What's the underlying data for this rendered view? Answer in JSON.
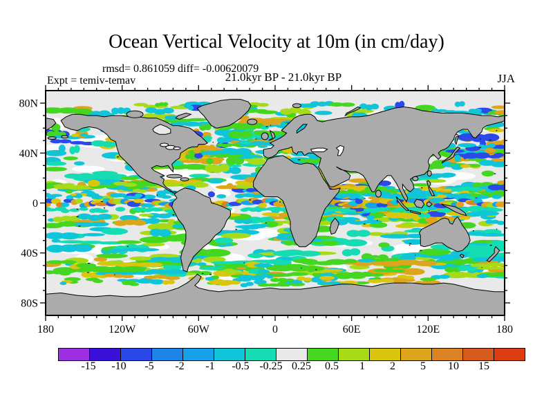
{
  "figure": {
    "background": "#FFFFFF"
  },
  "chart_data": {
    "type": "heatmap",
    "title": "Ocean Vertical Velocity at 10m (in cm/day)",
    "stats_line": "rmsd= 0.861059 diff= -0.00620079",
    "comparison_line": "21.0kyr BP - 21.0kyr BP",
    "experiment_label": "Expt = temiv-temav",
    "season_label": "JJA",
    "units": "cm/day",
    "x_axis": {
      "range": [
        -180,
        180
      ],
      "label_values": [
        -180,
        -120,
        -60,
        0,
        60,
        120,
        180
      ],
      "labels": [
        "180",
        "120W",
        "60W",
        "0",
        "60E",
        "120E",
        "180"
      ],
      "minor_tick_step_deg": 10
    },
    "y_axis": {
      "range": [
        -90,
        90
      ],
      "label_values": [
        80,
        40,
        0,
        -40,
        -80
      ],
      "labels": [
        "80N",
        "40N",
        "0",
        "40S",
        "80S"
      ],
      "minor_tick_step_deg": 10
    },
    "colorbar": {
      "boundary_labels": [
        "-15",
        "-10",
        "-5",
        "-2",
        "-1",
        "-0.5",
        "-0.25",
        "0.25",
        "0.5",
        "1",
        "2",
        "5",
        "10",
        "15"
      ],
      "cell_colors": [
        "#9C2FE0",
        "#3A11D8",
        "#2B49E8",
        "#1E84E8",
        "#18A0E8",
        "#11C5D8",
        "#16DCB3",
        "#E9E9E9",
        "#44D621",
        "#A8DB17",
        "#D8C60F",
        "#DDA51B",
        "#DB8324",
        "#D45A20",
        "#DC3D10"
      ]
    },
    "map": {
      "projection": "equirectangular",
      "land_color": "#ABABAB",
      "coast_color": "#000000",
      "ocean_band_color": "#E9E9E9",
      "frame_color": "#000000"
    },
    "pattern": {
      "seed": 77,
      "palette": {
        "blue": "#2B49E8",
        "skyblue": "#18A0E8",
        "cyan": "#11C5D8",
        "turq": "#16DCB3",
        "green": "#44D621",
        "yellowGreen": "#A8DB17",
        "yellow": "#D8C60F",
        "orange": "#DDA51B",
        "deepOrange": "#DB8324"
      },
      "white_patches": {
        "count": 75,
        "lat": [
          -60,
          72
        ],
        "rx": [
          12,
          45
        ],
        "ry": [
          4,
          11
        ]
      },
      "bands": [
        {
          "lat": [
            62,
            79
          ],
          "count": 90,
          "weights": {
            "cyan": 4,
            "green": 3,
            "yellowGreen": 2,
            "orange": 1,
            "blue": 1
          },
          "rx": [
            4,
            16
          ],
          "ry": [
            2,
            5
          ]
        },
        {
          "lat": [
            42,
            62
          ],
          "count": 100,
          "weights": {
            "cyan": 4,
            "green": 3,
            "orange": 2,
            "blue": 2,
            "yellow": 1,
            "turq": 2
          },
          "rx": [
            4,
            14
          ],
          "ry": [
            2,
            6
          ]
        },
        {
          "lat": [
            18,
            42
          ],
          "count": 75,
          "weights": {
            "cyan": 4,
            "turq": 3,
            "green": 3,
            "yellowGreen": 1
          },
          "rx": [
            6,
            22
          ],
          "ry": [
            2,
            6
          ]
        },
        {
          "lat": [
            4,
            18
          ],
          "count": 110,
          "weights": {
            "green": 4,
            "cyan": 3,
            "yellow": 2,
            "orange": 2,
            "yellowGreen": 2,
            "blue": 1
          },
          "rx": [
            5,
            16
          ],
          "ry": [
            2,
            5
          ]
        },
        {
          "lat": [
            -18,
            -4
          ],
          "count": 110,
          "weights": {
            "green": 3,
            "cyan": 3,
            "yellow": 2,
            "orange": 2,
            "yellowGreen": 2,
            "turq": 1
          },
          "rx": [
            5,
            16
          ],
          "ry": [
            2,
            5
          ]
        },
        {
          "lat": [
            -44,
            -18
          ],
          "count": 85,
          "weights": {
            "cyan": 4,
            "turq": 3,
            "green": 2,
            "yellowGreen": 1
          },
          "rx": [
            6,
            24
          ],
          "ry": [
            2,
            6
          ]
        },
        {
          "lat": [
            -58,
            -44
          ],
          "count": 130,
          "weights": {
            "green": 4,
            "cyan": 3,
            "yellowGreen": 2,
            "yellow": 1,
            "orange": 1,
            "turq": 2
          },
          "rx": [
            6,
            20
          ],
          "ry": [
            2,
            5
          ]
        },
        {
          "lat": [
            -66,
            -58
          ],
          "count": 55,
          "weights": {
            "cyan": 3,
            "green": 2,
            "yellow": 1,
            "orange": 1
          },
          "rx": [
            4,
            12
          ],
          "ry": [
            2,
            4
          ]
        }
      ],
      "clusters": [
        {
          "box": [
            -78,
            33,
            -45,
            47
          ],
          "count": 26,
          "weights": {
            "orange": 3,
            "blue": 2,
            "cyan": 2,
            "green": 2,
            "yellow": 1
          }
        },
        {
          "box": [
            -45,
            45,
            -8,
            62
          ],
          "count": 24,
          "weights": {
            "cyan": 4,
            "green": 3,
            "turq": 2,
            "orange": 1
          }
        },
        {
          "box": [
            140,
            28,
            179,
            47
          ],
          "count": 24,
          "weights": {
            "cyan": 3,
            "green": 2,
            "orange": 2,
            "blue": 1,
            "yellow": 1
          }
        },
        {
          "box": [
            42,
            -8,
            60,
            14
          ],
          "count": 16,
          "weights": {
            "orange": 2,
            "cyan": 2,
            "blue": 1,
            "green": 2,
            "yellow": 1
          }
        },
        {
          "box": [
            -82,
            -20,
            -70,
            2
          ],
          "count": 14,
          "weights": {
            "cyan": 2,
            "green": 2,
            "orange": 1,
            "yellowGreen": 1
          }
        },
        {
          "box": [
            5,
            -32,
            16,
            -8
          ],
          "count": 12,
          "weights": {
            "orange": 1,
            "green": 2,
            "cyan": 2,
            "yellowGreen": 1
          }
        },
        {
          "box": [
            60,
            -12,
            100,
            12
          ],
          "count": 30,
          "weights": {
            "green": 3,
            "cyan": 3,
            "yellow": 2,
            "orange": 2,
            "blue": 1,
            "turq": 2
          }
        },
        {
          "box": [
            100,
            -15,
            150,
            15
          ],
          "count": 30,
          "weights": {
            "green": 3,
            "cyan": 3,
            "yellow": 2,
            "orange": 2,
            "blue": 2,
            "turq": 2
          }
        },
        {
          "box": [
            -5,
            31,
            35,
            43
          ],
          "count": 14,
          "weights": {
            "cyan": 2,
            "green": 2,
            "yellow": 1,
            "orange": 1
          }
        },
        {
          "box": [
            33,
            13,
            43,
            28
          ],
          "count": 7,
          "weights": {
            "yellow": 2,
            "cyan": 1,
            "green": 1
          }
        }
      ],
      "equator": {
        "lat_jitter": 2.2,
        "step_deg": 3.6,
        "cycle": [
          "orange",
          "blue",
          "yellow",
          "deepOrange",
          "cyan",
          "blue",
          "orange",
          "yellowGreen",
          "skyblue"
        ],
        "rx": [
          5,
          12
        ],
        "ry": [
          2.5,
          4.5
        ]
      }
    }
  }
}
